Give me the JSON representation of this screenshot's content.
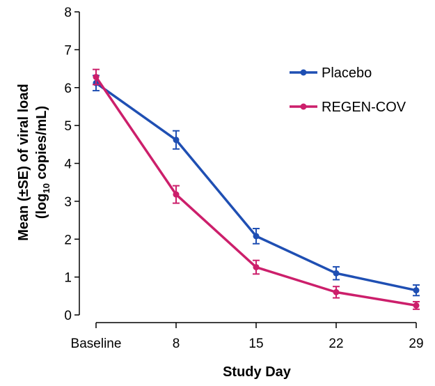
{
  "chart_data": {
    "type": "line",
    "xlabel": "Study Day",
    "ylabel_line1": "Mean (±SE) of viral load",
    "ylabel_line2_prefix": "(log",
    "ylabel_line2_sub": "10",
    "ylabel_line2_suffix": " copies/mL)",
    "categories": [
      "Baseline",
      "8",
      "15",
      "22",
      "29"
    ],
    "ylim": [
      0,
      8
    ],
    "yticks": [
      "0",
      "1",
      "2",
      "3",
      "4",
      "5",
      "6",
      "7",
      "8"
    ],
    "grid": false,
    "legend_position": "top-right",
    "series": [
      {
        "name": "Placebo",
        "color": "#1f4fb3",
        "values": [
          6.12,
          4.62,
          2.08,
          1.1,
          0.65
        ],
        "se": [
          0.2,
          0.24,
          0.2,
          0.17,
          0.14
        ]
      },
      {
        "name": "REGEN-COV",
        "color": "#cc1f6b",
        "values": [
          6.28,
          3.18,
          1.26,
          0.6,
          0.25
        ],
        "se": [
          0.2,
          0.23,
          0.18,
          0.15,
          0.1
        ]
      }
    ]
  }
}
